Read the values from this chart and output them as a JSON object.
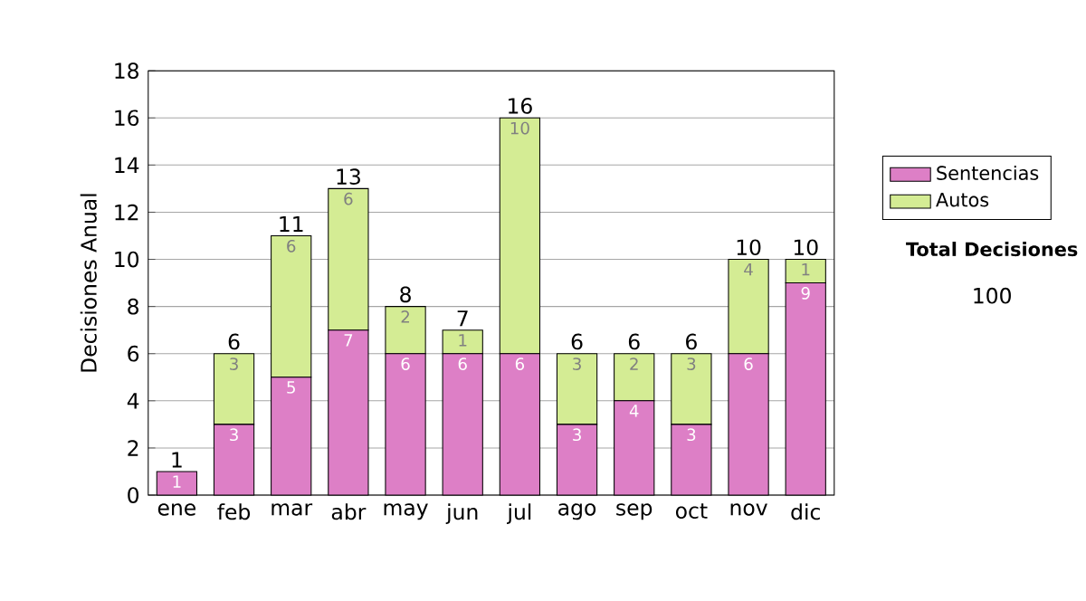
{
  "chart_data": {
    "type": "bar",
    "stacked": true,
    "ylabel": "Decisiones Anual",
    "categories": [
      "ene",
      "feb",
      "mar",
      "abr",
      "may",
      "jun",
      "jul",
      "ago",
      "sep",
      "oct",
      "nov",
      "dic"
    ],
    "series": [
      {
        "name": "Sentencias",
        "color": "#dd7fc6",
        "values": [
          1,
          3,
          5,
          7,
          6,
          6,
          6,
          3,
          4,
          3,
          6,
          9
        ],
        "value_labels": [
          "1",
          "3",
          "5",
          "7",
          "6",
          "6",
          "6",
          "3",
          "4",
          "3",
          "6",
          "9"
        ]
      },
      {
        "name": "Autos",
        "color": "#d4ec94",
        "values": [
          0,
          3,
          6,
          6,
          2,
          1,
          10,
          3,
          2,
          3,
          4,
          1
        ],
        "value_labels": [
          null,
          "3",
          "6",
          "6",
          "2",
          "1",
          "10",
          "3",
          "2",
          "3",
          "4",
          "1"
        ]
      }
    ],
    "totals": [
      "1",
      "6",
      "11",
      "13",
      "8",
      "7",
      "16",
      "6",
      "6",
      "6",
      "10",
      "10"
    ],
    "ylim": [
      0,
      18
    ],
    "yticks": [
      0,
      2,
      4,
      6,
      8,
      10,
      12,
      14,
      16,
      18
    ],
    "grid": "y",
    "legend": "right",
    "annotations": [
      "Total Decisiones",
      "100"
    ]
  }
}
